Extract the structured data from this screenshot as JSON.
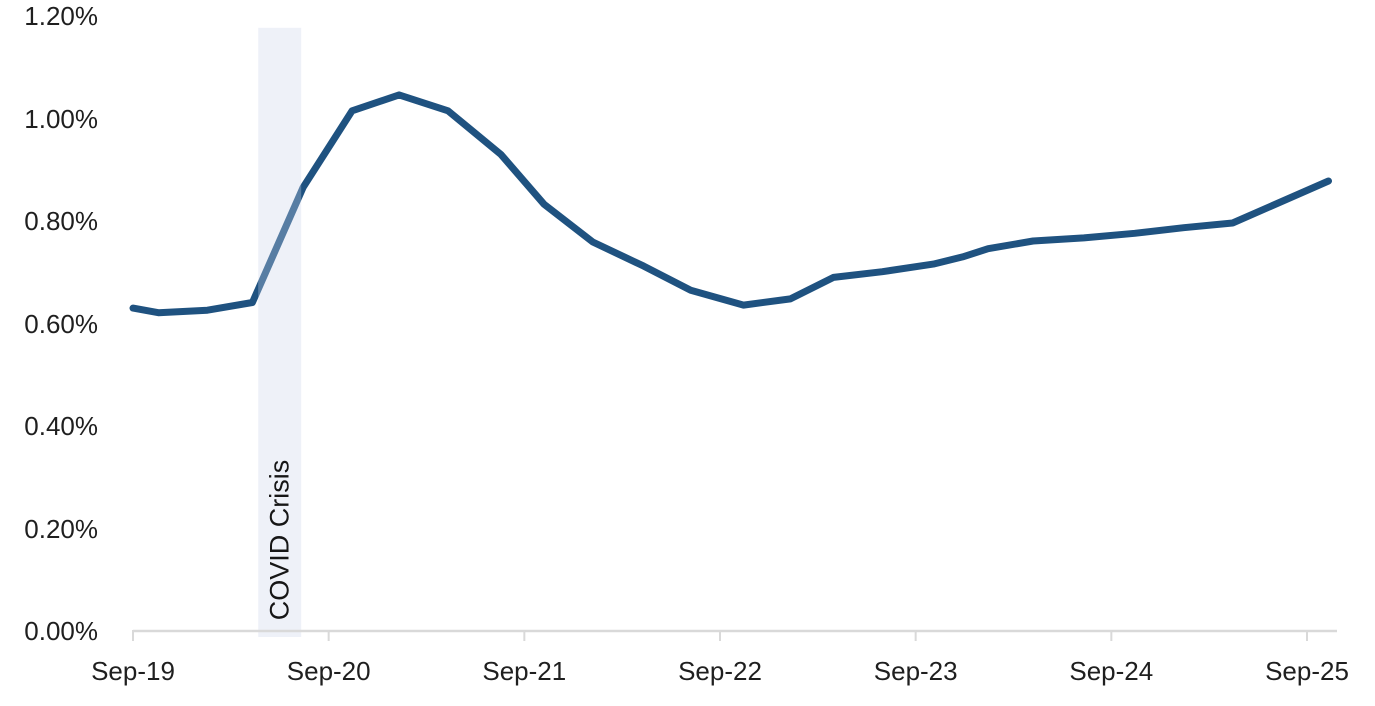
{
  "chart_data": {
    "type": "line",
    "title": "",
    "grid": "off",
    "legend": "none",
    "x_axis": {
      "tick_labels": [
        "Sep-19",
        "Sep-20",
        "Sep-21",
        "Sep-22",
        "Sep-23",
        "Sep-24",
        "Sep-25"
      ],
      "tick_years": [
        0,
        1,
        2,
        3,
        4,
        5,
        6
      ]
    },
    "y_axis": {
      "tick_labels": [
        "1.20%",
        "1.00%",
        "0.80%",
        "0.60%",
        "0.40%",
        "0.20%",
        "0.00%"
      ],
      "tick_values": [
        1.2,
        1.0,
        0.8,
        0.6,
        0.4,
        0.2,
        0.0
      ],
      "min": 0.0,
      "max": 1.2,
      "format": "percent"
    },
    "series": [
      {
        "color": "#1f5280",
        "points": [
          {
            "t": 0.0,
            "label": "Sep-19",
            "y": 0.63
          },
          {
            "t": 0.13,
            "label": "Oct-19",
            "y": 0.621
          },
          {
            "t": 0.38,
            "label": "Feb-20",
            "y": 0.626
          },
          {
            "t": 0.61,
            "label": "Apr-20",
            "y": 0.641
          },
          {
            "t": 0.87,
            "label": "Jul-20",
            "y": 0.866
          },
          {
            "t": 1.12,
            "label": "Oct-20",
            "y": 1.015
          },
          {
            "t": 1.36,
            "label": "Jan-21",
            "y": 1.046
          },
          {
            "t": 1.61,
            "label": "Apr-21",
            "y": 1.015
          },
          {
            "t": 1.88,
            "label": "Jul-21",
            "y": 0.93
          },
          {
            "t": 2.1,
            "label": "Oct-21",
            "y": 0.833
          },
          {
            "t": 2.35,
            "label": "Jan-22",
            "y": 0.759
          },
          {
            "t": 2.61,
            "label": "Apr-22",
            "y": 0.712
          },
          {
            "t": 2.85,
            "label": "Jul-22",
            "y": 0.665
          },
          {
            "t": 3.12,
            "label": "Oct-22",
            "y": 0.636
          },
          {
            "t": 3.36,
            "label": "Jan-23",
            "y": 0.648
          },
          {
            "t": 3.58,
            "label": "Apr-23",
            "y": 0.69
          },
          {
            "t": 3.83,
            "label": "Jul-23",
            "y": 0.701
          },
          {
            "t": 4.09,
            "label": "Oct-23",
            "y": 0.716
          },
          {
            "t": 4.24,
            "label": "Dec-23",
            "y": 0.73
          },
          {
            "t": 4.37,
            "label": "Feb-24",
            "y": 0.746
          },
          {
            "t": 4.6,
            "label": "Apr-24",
            "y": 0.761
          },
          {
            "t": 4.86,
            "label": "Jul-24",
            "y": 0.767
          },
          {
            "t": 5.12,
            "label": "Oct-24",
            "y": 0.776
          },
          {
            "t": 5.37,
            "label": "Jan-25",
            "y": 0.787
          },
          {
            "t": 5.62,
            "label": "Apr-25",
            "y": 0.796
          },
          {
            "t": 6.11,
            "label": "Oct-25",
            "y": 0.878
          }
        ]
      }
    ],
    "annotation_band": {
      "label": "COVID Crisis",
      "x_from_years": 0.64,
      "x_to_years": 0.86,
      "top_value_pct": 1.177,
      "fill": "rgba(203,213,234,0.33)"
    },
    "axis_color": "#d9d9d9",
    "text_color": "#1f1f1f"
  }
}
